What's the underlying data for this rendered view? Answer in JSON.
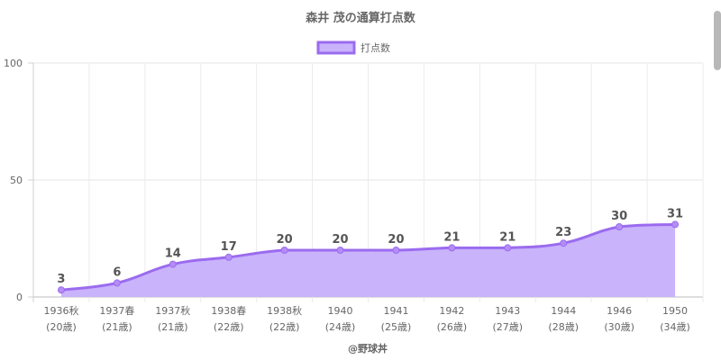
{
  "chart_data": {
    "type": "area",
    "title": "森井 茂の通算打点数",
    "legend": {
      "label": "打点数",
      "placement": "top-center"
    },
    "categories": [
      [
        "1936秋",
        "(20歳)"
      ],
      [
        "1937春",
        "(21歳)"
      ],
      [
        "1937秋",
        "(21歳)"
      ],
      [
        "1938春",
        "(22歳)"
      ],
      [
        "1938秋",
        "(22歳)"
      ],
      [
        "1940",
        "(24歳)"
      ],
      [
        "1941",
        "(25歳)"
      ],
      [
        "1942",
        "(26歳)"
      ],
      [
        "1943",
        "(27歳)"
      ],
      [
        "1944",
        "(28歳)"
      ],
      [
        "1946",
        "(30歳)"
      ],
      [
        "1950",
        "(34歳)"
      ]
    ],
    "series": [
      {
        "name": "打点数",
        "values": [
          3,
          6,
          14,
          17,
          20,
          20,
          20,
          21,
          21,
          23,
          30,
          31
        ]
      }
    ],
    "ylim": [
      0,
      100
    ],
    "yticks": [
      0,
      50,
      100
    ],
    "grid": true,
    "colors": {
      "line": "#9b6bef",
      "fill": "#c9b3fb",
      "point": "#b58cf6"
    }
  },
  "footer": {
    "text": "@野球丼"
  }
}
